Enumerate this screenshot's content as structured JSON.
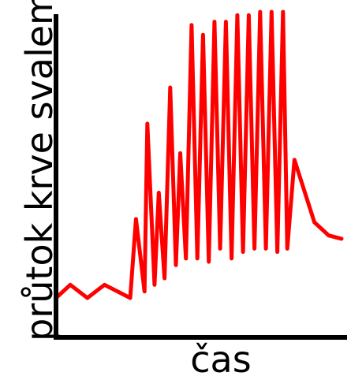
{
  "chart_data": {
    "type": "line",
    "xlabel": "čas",
    "ylabel": "průtok krve svalem",
    "title": "",
    "axes_visible": [
      "left",
      "bottom"
    ],
    "ticks": "none",
    "grid": false,
    "legend": "none",
    "line_color": "#ff0000",
    "axis_color": "#000000",
    "series": [
      {
        "values": [
          [
            0.0,
            0.12
          ],
          [
            0.05,
            0.16
          ],
          [
            0.11,
            0.12
          ],
          [
            0.17,
            0.16
          ],
          [
            0.26,
            0.12
          ],
          [
            0.28,
            0.36
          ],
          [
            0.31,
            0.14
          ],
          [
            0.32,
            0.65
          ],
          [
            0.345,
            0.16
          ],
          [
            0.36,
            0.44
          ],
          [
            0.38,
            0.18
          ],
          [
            0.4,
            0.76
          ],
          [
            0.42,
            0.22
          ],
          [
            0.435,
            0.56
          ],
          [
            0.455,
            0.24
          ],
          [
            0.475,
            0.95
          ],
          [
            0.495,
            0.24
          ],
          [
            0.515,
            0.92
          ],
          [
            0.535,
            0.23
          ],
          [
            0.555,
            0.96
          ],
          [
            0.575,
            0.27
          ],
          [
            0.595,
            0.96
          ],
          [
            0.615,
            0.24
          ],
          [
            0.635,
            0.98
          ],
          [
            0.655,
            0.26
          ],
          [
            0.675,
            0.98
          ],
          [
            0.695,
            0.27
          ],
          [
            0.715,
            0.99
          ],
          [
            0.735,
            0.27
          ],
          [
            0.755,
            0.99
          ],
          [
            0.775,
            0.26
          ],
          [
            0.795,
            0.99
          ],
          [
            0.81,
            0.27
          ],
          [
            0.835,
            0.54
          ],
          [
            0.905,
            0.35
          ],
          [
            0.955,
            0.31
          ],
          [
            1.0,
            0.3
          ]
        ]
      }
    ]
  }
}
